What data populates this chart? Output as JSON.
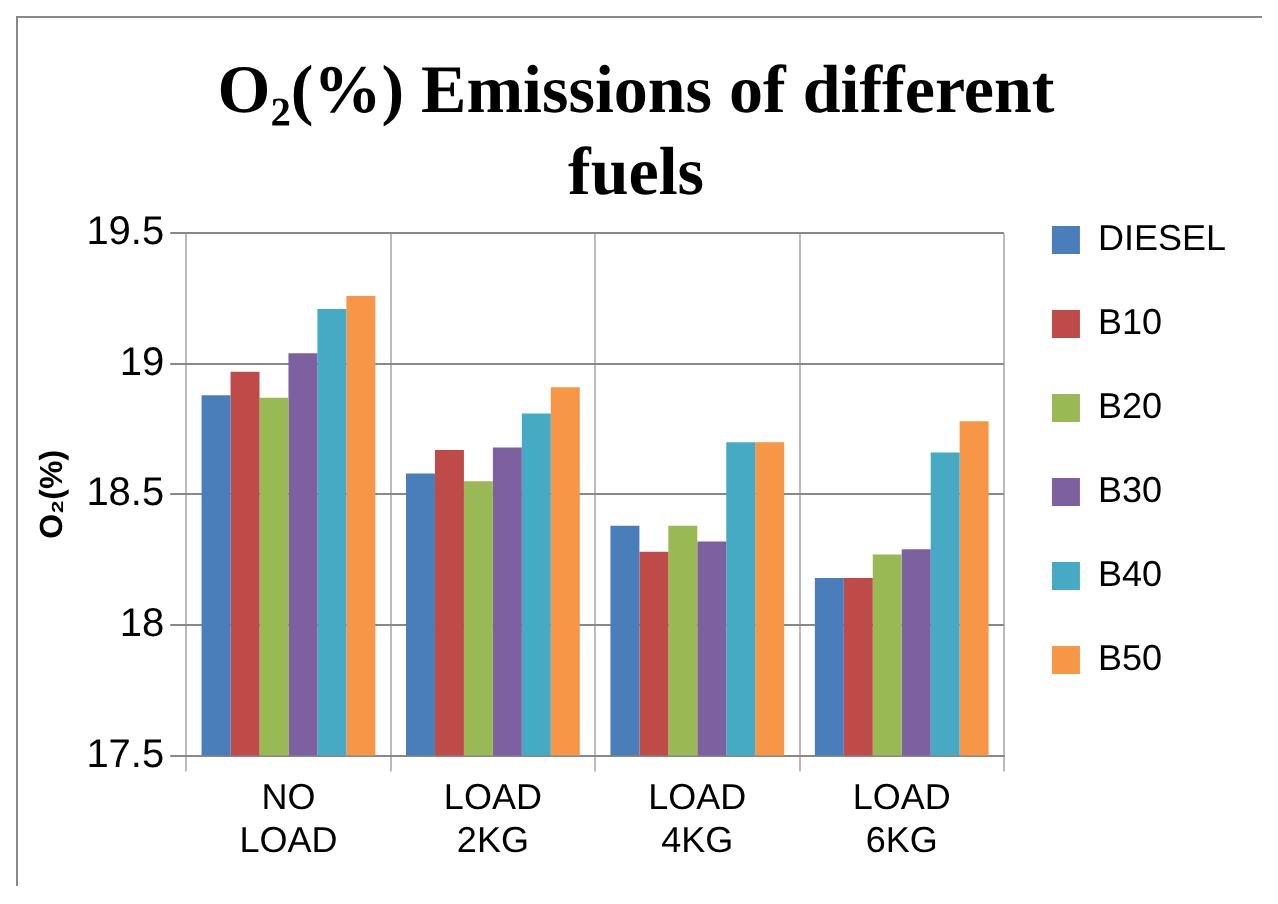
{
  "chart_data": {
    "type": "bar",
    "title": "O₂(%) Emissions of different fuels",
    "ylabel": "O₂(%)",
    "categories": [
      "NO LOAD",
      "LOAD 2KG",
      "LOAD 4KG",
      "LOAD 6KG"
    ],
    "series": [
      {
        "name": "DIESEL",
        "color": "#4a7ebb",
        "values": [
          18.88,
          18.58,
          18.38,
          18.18
        ]
      },
      {
        "name": "B10",
        "color": "#be4b48",
        "values": [
          18.97,
          18.67,
          18.28,
          18.18
        ]
      },
      {
        "name": "B20",
        "color": "#98b954",
        "values": [
          18.87,
          18.55,
          18.38,
          18.27
        ]
      },
      {
        "name": "B30",
        "color": "#7d60a0",
        "values": [
          19.04,
          18.68,
          18.32,
          18.29
        ]
      },
      {
        "name": "B40",
        "color": "#46aac5",
        "values": [
          19.21,
          18.81,
          18.7,
          18.66
        ]
      },
      {
        "name": "B50",
        "color": "#f79646",
        "values": [
          19.26,
          18.91,
          18.7,
          18.78
        ]
      }
    ],
    "ylim": [
      17.5,
      19.5
    ],
    "yticks": [
      17.5,
      18,
      18.5,
      19,
      19.5
    ],
    "grid": true,
    "legend": "right"
  }
}
